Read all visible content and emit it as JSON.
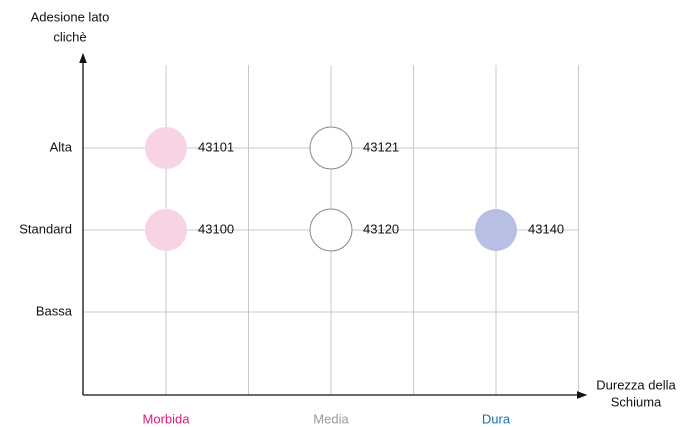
{
  "chart_data": {
    "type": "matrix",
    "y_title": [
      "Adesione lato",
      "clichè"
    ],
    "x_title": [
      "Durezza della",
      "Schiuma"
    ],
    "x_categories": [
      {
        "label": "Morbida",
        "color": "#e0187f"
      },
      {
        "label": "Media",
        "color": "#9a9a9a"
      },
      {
        "label": "Dura",
        "color": "#1f6fae"
      }
    ],
    "y_categories": [
      "Bassa",
      "Standard",
      "Alta"
    ],
    "points": [
      {
        "x": "Morbida",
        "y": "Alta",
        "label": "43101",
        "fill": "#f8d3e4",
        "stroke": "none"
      },
      {
        "x": "Media",
        "y": "Alta",
        "label": "43121",
        "fill": "#ffffff",
        "stroke": "#888888"
      },
      {
        "x": "Morbida",
        "y": "Standard",
        "label": "43100",
        "fill": "#f8d3e4",
        "stroke": "none"
      },
      {
        "x": "Media",
        "y": "Standard",
        "label": "43120",
        "fill": "#ffffff",
        "stroke": "#888888"
      },
      {
        "x": "Dura",
        "y": "Standard",
        "label": "43140",
        "fill": "#b8bfe4",
        "stroke": "none"
      }
    ]
  }
}
